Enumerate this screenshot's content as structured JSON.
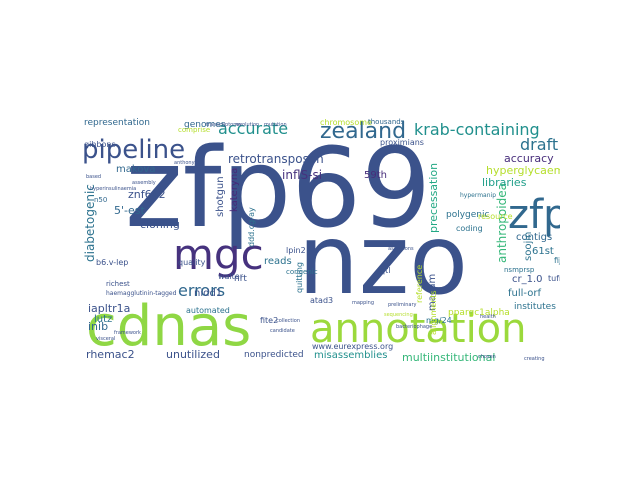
{
  "word_cloud": {
    "words": [
      {
        "text": "zfp69",
        "color": "#3b528b"
      },
      {
        "text": "nzo",
        "color": "#3b528b"
      },
      {
        "text": "cdnas",
        "color": "#8fd744"
      },
      {
        "text": "annotation",
        "color": "#9bd93c"
      },
      {
        "text": "mgc",
        "color": "#46327e"
      },
      {
        "text": "zfp",
        "color": "#31688e"
      },
      {
        "text": "pipeline",
        "color": "#3b528b"
      },
      {
        "text": "zealand",
        "color": "#31688e"
      },
      {
        "text": "krab-containing",
        "color": "#21908d"
      },
      {
        "text": "accurate",
        "color": "#21908d"
      },
      {
        "text": "draft",
        "color": "#2c728e"
      },
      {
        "text": "errors",
        "color": "#31688e"
      },
      {
        "text": "diabetogenic",
        "color": "#2c728e"
      },
      {
        "text": "retrotransposon",
        "color": "#3b528b"
      },
      {
        "text": "accuracy",
        "color": "#472d7b"
      },
      {
        "text": "hyperglycaemia",
        "color": "#b5de2b"
      },
      {
        "text": "anthropoidea",
        "color": "#35b779"
      },
      {
        "text": "precessation",
        "color": "#22a884"
      },
      {
        "text": "libraries",
        "color": "#1f9e89"
      },
      {
        "text": "inflS-si",
        "color": "#46327e"
      },
      {
        "text": "znf642",
        "color": "#3b528b"
      },
      {
        "text": "5'-est",
        "color": "#31688e"
      },
      {
        "text": "cloning",
        "color": "#3b528b"
      },
      {
        "text": "makova",
        "color": "#31688e"
      },
      {
        "text": "genomes",
        "color": "#31688e"
      },
      {
        "text": "shotgun",
        "color": "#3b528b"
      },
      {
        "text": "kateryna",
        "color": "#482878"
      },
      {
        "text": "iapltr1a",
        "color": "#3b528b"
      },
      {
        "text": "inib",
        "color": "#31688e"
      },
      {
        "text": "reads",
        "color": "#2c728e"
      },
      {
        "text": "nrt",
        "color": "#3b528b"
      },
      {
        "text": "lutz",
        "color": "#2c728e"
      },
      {
        "text": "rhemac2",
        "color": "#3b528b"
      },
      {
        "text": "unutilized",
        "color": "#3b528b"
      },
      {
        "text": "nonpredicted",
        "color": "#3b528b"
      },
      {
        "text": "misassemblies",
        "color": "#21908d"
      },
      {
        "text": "multiinstitutional",
        "color": "#35b779"
      },
      {
        "text": "nidd1",
        "color": "#3b528b"
      },
      {
        "text": "macam",
        "color": "#3b528b"
      },
      {
        "text": "contigs",
        "color": "#31688e"
      },
      {
        "text": "polygenic",
        "color": "#2c728e"
      },
      {
        "text": "61st",
        "color": "#2c728e"
      },
      {
        "text": "cr_1.0",
        "color": "#3b528b"
      },
      {
        "text": "full-orf",
        "color": "#2c728e"
      },
      {
        "text": "soojin",
        "color": "#2c728e"
      },
      {
        "text": "59th",
        "color": "#472d7b"
      },
      {
        "text": "representation",
        "color": "#31688e"
      },
      {
        "text": "chromosome",
        "color": "#b5de2b"
      },
      {
        "text": "thousands",
        "color": "#31688e"
      },
      {
        "text": "proximians",
        "color": "#3b528b"
      },
      {
        "text": "coding",
        "color": "#2c728e"
      },
      {
        "text": "institutes",
        "color": "#2c728e"
      },
      {
        "text": "reference",
        "color": "#b5de2b"
      },
      {
        "text": "ppargc1alpha",
        "color": "#b5de2b"
      },
      {
        "text": "qtl",
        "color": "#3b528b"
      },
      {
        "text": "tufm",
        "color": "#3b528b"
      },
      {
        "text": "fij",
        "color": "#2c728e"
      },
      {
        "text": "resource",
        "color": "#b5de2b"
      },
      {
        "text": "automated",
        "color": "#2c728e"
      },
      {
        "text": "quality",
        "color": "#3b528b"
      },
      {
        "text": "walter",
        "color": "#3b528b"
      },
      {
        "text": "fite2",
        "color": "#3b528b"
      },
      {
        "text": "atad3",
        "color": "#3b528b"
      },
      {
        "text": "quitting",
        "color": "#2c728e"
      },
      {
        "text": "lpin2",
        "color": "#3b528b"
      },
      {
        "text": "mg/24",
        "color": "#2c728e"
      },
      {
        "text": "www.eurexpress.org",
        "color": "#3b528b"
      },
      {
        "text": "ddd.cg-ay",
        "color": "#2c728e"
      },
      {
        "text": "b6.v-lep",
        "color": "#3b528b"
      },
      {
        "text": "gibbons",
        "color": "#3b528b"
      },
      {
        "text": "comprise",
        "color": "#b5de2b"
      },
      {
        "text": "n50",
        "color": "#31688e"
      },
      {
        "text": "richest",
        "color": "#3b528b"
      },
      {
        "text": "haemagglutinin-tagged",
        "color": "#3b528b"
      },
      {
        "text": "congenic",
        "color": "#2c728e"
      },
      {
        "text": "alignments",
        "color": "#b5de2b"
      },
      {
        "text": "nsmprsp",
        "color": "#2c728e"
      },
      {
        "text": "hypermanip",
        "color": "#2c728e"
      },
      {
        "text": "transcriptome",
        "color": "#3b528b"
      },
      {
        "text": "evolution",
        "color": "#3b528b"
      },
      {
        "text": "mutation",
        "color": "#3b528b"
      },
      {
        "text": "assembly",
        "color": "#3b528b"
      },
      {
        "text": "anthony",
        "color": "#3b528b"
      },
      {
        "text": "based",
        "color": "#3b528b"
      },
      {
        "text": "hyperinsulinaemia",
        "color": "#3b528b"
      },
      {
        "text": "framework",
        "color": "#3b528b"
      },
      {
        "text": "mapping",
        "color": "#3b528b"
      },
      {
        "text": "assertions",
        "color": "#3b528b"
      },
      {
        "text": "preliminary",
        "color": "#3b528b"
      },
      {
        "text": "bacteriophage",
        "color": "#3b528b"
      },
      {
        "text": "sequencing",
        "color": "#b5de2b"
      },
      {
        "text": "candidate",
        "color": "#3b528b"
      },
      {
        "text": "creating",
        "color": "#3b528b"
      },
      {
        "text": "health",
        "color": "#3b528b"
      },
      {
        "text": "chosen",
        "color": "#3b528b"
      },
      {
        "text": "collection",
        "color": "#3b528b"
      },
      {
        "text": "visceral",
        "color": "#3b528b"
      }
    ]
  }
}
